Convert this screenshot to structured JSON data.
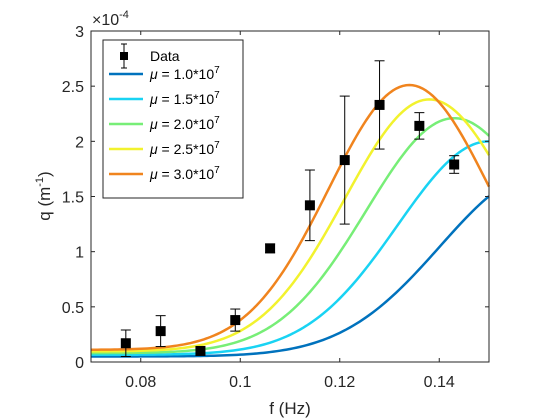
{
  "chart_data": {
    "type": "scatter",
    "xlabel": "f (Hz)",
    "ylabel": "q (m",
    "ylabel_sup": "-1",
    "ylabel_end": ")",
    "y_multiplier": "×10",
    "y_multiplier_exp": "-4",
    "xlim": [
      0.07,
      0.15
    ],
    "ylim": [
      0,
      3
    ],
    "xticks": [
      0.08,
      0.1,
      0.12,
      0.14
    ],
    "xtick_labels": [
      "0.08",
      "0.1",
      "0.12",
      "0.14"
    ],
    "yticks": [
      0,
      0.5,
      1,
      1.5,
      2,
      2.5,
      3
    ],
    "ytick_labels": [
      "0",
      "0.5",
      "1",
      "1.5",
      "2",
      "2.5",
      "3"
    ],
    "legend_position": "top-left",
    "grid": false,
    "data_series": {
      "name": "Data",
      "x": [
        0.077,
        0.084,
        0.092,
        0.099,
        0.106,
        0.114,
        0.121,
        0.128,
        0.136,
        0.143
      ],
      "y": [
        0.17,
        0.28,
        0.1,
        0.38,
        1.03,
        1.42,
        1.83,
        2.33,
        2.14,
        1.79
      ],
      "err": [
        0.12,
        0.14,
        0.0,
        0.1,
        0.04,
        0.32,
        0.58,
        0.4,
        0.12,
        0.08
      ]
    },
    "series": [
      {
        "name_prefix": "μ",
        "name_value": " = 1.0*10",
        "name_exp": "7",
        "color": "#0072BD",
        "A": 1.7,
        "f0": 0.16,
        "w": 0.028,
        "base": 0.05
      },
      {
        "name_prefix": "μ",
        "name_value": " = 1.5*10",
        "name_exp": "7",
        "color": "#19D3F3",
        "A": 2.0,
        "f0": 0.15,
        "w": 0.026,
        "base": 0.065
      },
      {
        "name_prefix": "μ",
        "name_value": " = 2.0*10",
        "name_exp": "7",
        "color": "#77EE77",
        "A": 2.21,
        "f0": 0.143,
        "w": 0.025,
        "base": 0.08
      },
      {
        "name_prefix": "μ",
        "name_value": " = 2.5*10",
        "name_exp": "7",
        "color": "#F2F22E",
        "A": 2.38,
        "f0": 0.138,
        "w": 0.024,
        "base": 0.095
      },
      {
        "name_prefix": "μ",
        "name_value": " = 3.0*10",
        "name_exp": "7",
        "color": "#F0841E",
        "A": 2.51,
        "f0": 0.134,
        "w": 0.023,
        "base": 0.11
      }
    ]
  }
}
